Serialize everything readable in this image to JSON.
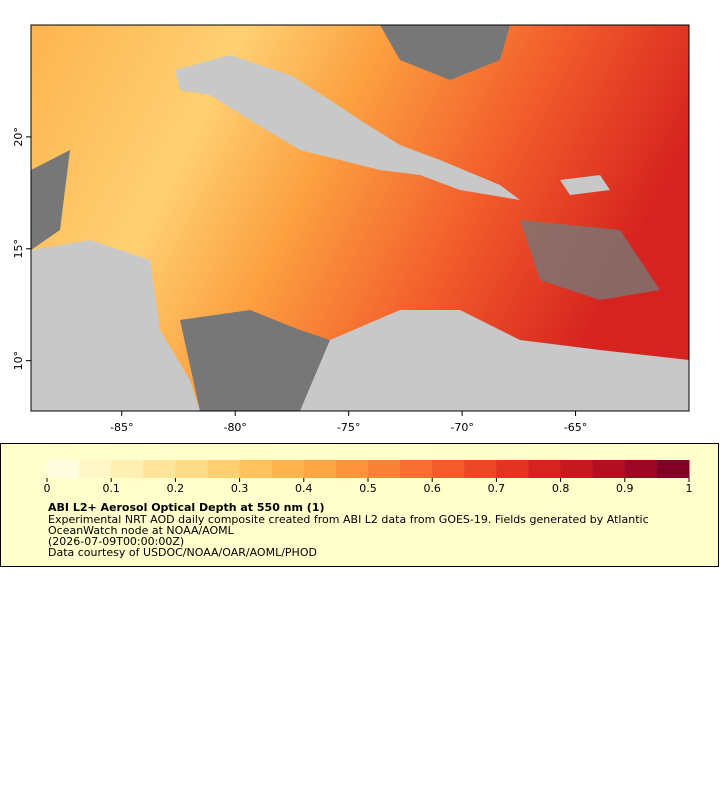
{
  "map": {
    "xlim": [
      -89,
      -60
    ],
    "ylim": [
      7.75,
      25
    ],
    "xticks": [
      {
        "value": -85,
        "label": "-85°"
      },
      {
        "value": -80,
        "label": "-80°"
      },
      {
        "value": -75,
        "label": "-75°"
      },
      {
        "value": -70,
        "label": "-70°"
      },
      {
        "value": -65,
        "label": "-65°"
      }
    ],
    "yticks": [
      {
        "value": 10,
        "label": "10°"
      },
      {
        "value": 15,
        "label": "15°"
      },
      {
        "value": 20,
        "label": "20°"
      }
    ]
  },
  "colorbar": {
    "lim": [
      0,
      1
    ],
    "ticks": [
      0,
      0.1,
      0.2,
      0.3,
      0.4,
      0.5,
      0.6,
      0.7,
      0.8,
      0.9,
      1
    ],
    "colors": [
      "#fffde0",
      "#fff7c8",
      "#ffefb0",
      "#fee59a",
      "#fedb86",
      "#fed072",
      "#fec35e",
      "#fdb44e",
      "#fda444",
      "#fc943c",
      "#fa8236",
      "#f76f30",
      "#f25c2b",
      "#ec4726",
      "#e33322",
      "#d6231f",
      "#c5181f",
      "#b10f22",
      "#9a0826",
      "#800026"
    ]
  },
  "caption": {
    "title": "ABI L2+ Aerosol Optical Depth at 550 nm (1)",
    "lines": [
      "Experimental NRT AOD daily composite created from ABI L2 data from GOES-19. Fields generated by Atlantic",
      "OceanWatch node at NOAA/AOML",
      "(2026-07-09T00:00:00Z)",
      "Data courtesy of USDOC/NOAA/OAR/AOML/PHOD"
    ]
  }
}
